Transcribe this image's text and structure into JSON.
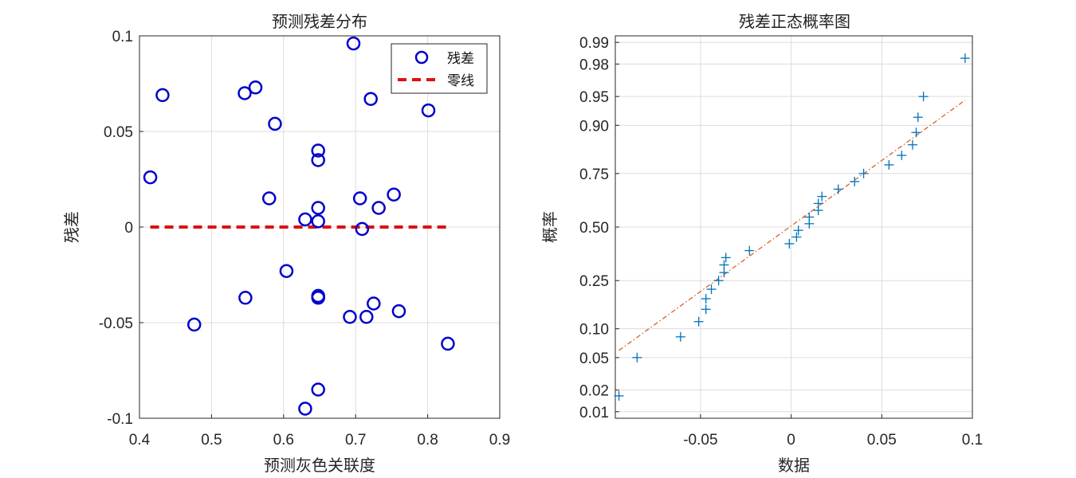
{
  "chart_data": [
    {
      "type": "scatter",
      "title": "预测残差分布",
      "xlabel": "预测灰色关联度",
      "ylabel": "残差",
      "xlim": [
        0.4,
        0.9
      ],
      "ylim": [
        -0.1,
        0.1
      ],
      "xticks": [
        "0.4",
        "0.5",
        "0.6",
        "0.7",
        "0.8",
        "0.9"
      ],
      "yticks": [
        "-0.1",
        "-0.05",
        "0",
        "0.05",
        "0.1"
      ],
      "grid": true,
      "legend_position": "top-right",
      "series": [
        {
          "name": "残差",
          "marker": "circle",
          "color": "#0000cc",
          "points": [
            [
              0.415,
              0.026
            ],
            [
              0.432,
              0.069
            ],
            [
              0.476,
              -0.051
            ],
            [
              0.546,
              0.07
            ],
            [
              0.547,
              -0.037
            ],
            [
              0.561,
              0.073
            ],
            [
              0.58,
              0.015
            ],
            [
              0.588,
              0.054
            ],
            [
              0.604,
              -0.023
            ],
            [
              0.63,
              0.004
            ],
            [
              0.63,
              -0.095
            ],
            [
              0.648,
              0.04
            ],
            [
              0.648,
              0.035
            ],
            [
              0.648,
              0.01
            ],
            [
              0.648,
              0.003
            ],
            [
              0.648,
              -0.036
            ],
            [
              0.648,
              -0.037
            ],
            [
              0.648,
              -0.085
            ],
            [
              0.692,
              -0.047
            ],
            [
              0.697,
              0.096
            ],
            [
              0.706,
              0.015
            ],
            [
              0.709,
              -0.001
            ],
            [
              0.715,
              -0.047
            ],
            [
              0.721,
              0.067
            ],
            [
              0.725,
              -0.04
            ],
            [
              0.732,
              0.01
            ],
            [
              0.753,
              0.017
            ],
            [
              0.76,
              -0.044
            ],
            [
              0.801,
              0.061
            ],
            [
              0.828,
              -0.061
            ]
          ]
        },
        {
          "name": "零线",
          "type": "line",
          "style": "dashed",
          "color": "#dd1111",
          "points": [
            [
              0.415,
              0
            ],
            [
              0.828,
              0
            ]
          ]
        }
      ]
    },
    {
      "type": "scatter",
      "subtype": "normal-probability",
      "title": "残差正态概率图",
      "xlabel": "数据",
      "ylabel": "概率",
      "xlim": [
        -0.097,
        0.1
      ],
      "xticks": [
        "-0.05",
        "0",
        "0.05",
        "0.1"
      ],
      "yticks": [
        "0.01",
        "0.02",
        "0.05",
        "0.10",
        "0.25",
        "0.50",
        "0.75",
        "0.90",
        "0.95",
        "0.98",
        "0.99"
      ],
      "ylim": [
        0.008,
        0.992
      ],
      "grid": true,
      "series": [
        {
          "marker": "plus",
          "color": "#0072BD",
          "points": [
            [
              -0.095,
              0.0167
            ],
            [
              -0.085,
              0.05
            ],
            [
              -0.061,
              0.0833
            ],
            [
              -0.051,
              0.1167
            ],
            [
              -0.047,
              0.15
            ],
            [
              -0.047,
              0.1833
            ],
            [
              -0.044,
              0.2167
            ],
            [
              -0.04,
              0.25
            ],
            [
              -0.037,
              0.2833
            ],
            [
              -0.037,
              0.3167
            ],
            [
              -0.036,
              0.35
            ],
            [
              -0.023,
              0.3833
            ],
            [
              -0.001,
              0.4167
            ],
            [
              0.003,
              0.45
            ],
            [
              0.004,
              0.4833
            ],
            [
              0.01,
              0.5167
            ],
            [
              0.01,
              0.55
            ],
            [
              0.015,
              0.5833
            ],
            [
              0.015,
              0.6167
            ],
            [
              0.017,
              0.65
            ],
            [
              0.026,
              0.6833
            ],
            [
              0.035,
              0.7167
            ],
            [
              0.04,
              0.75
            ],
            [
              0.054,
              0.7833
            ],
            [
              0.061,
              0.8167
            ],
            [
              0.067,
              0.85
            ],
            [
              0.069,
              0.8833
            ],
            [
              0.07,
              0.9167
            ],
            [
              0.073,
              0.95
            ],
            [
              0.096,
              0.9833
            ]
          ]
        },
        {
          "type": "line",
          "style": "dash-dot",
          "color": "#D95319",
          "points": [
            [
              -0.095,
              0.06
            ],
            [
              0.096,
              0.945
            ]
          ]
        }
      ]
    }
  ]
}
